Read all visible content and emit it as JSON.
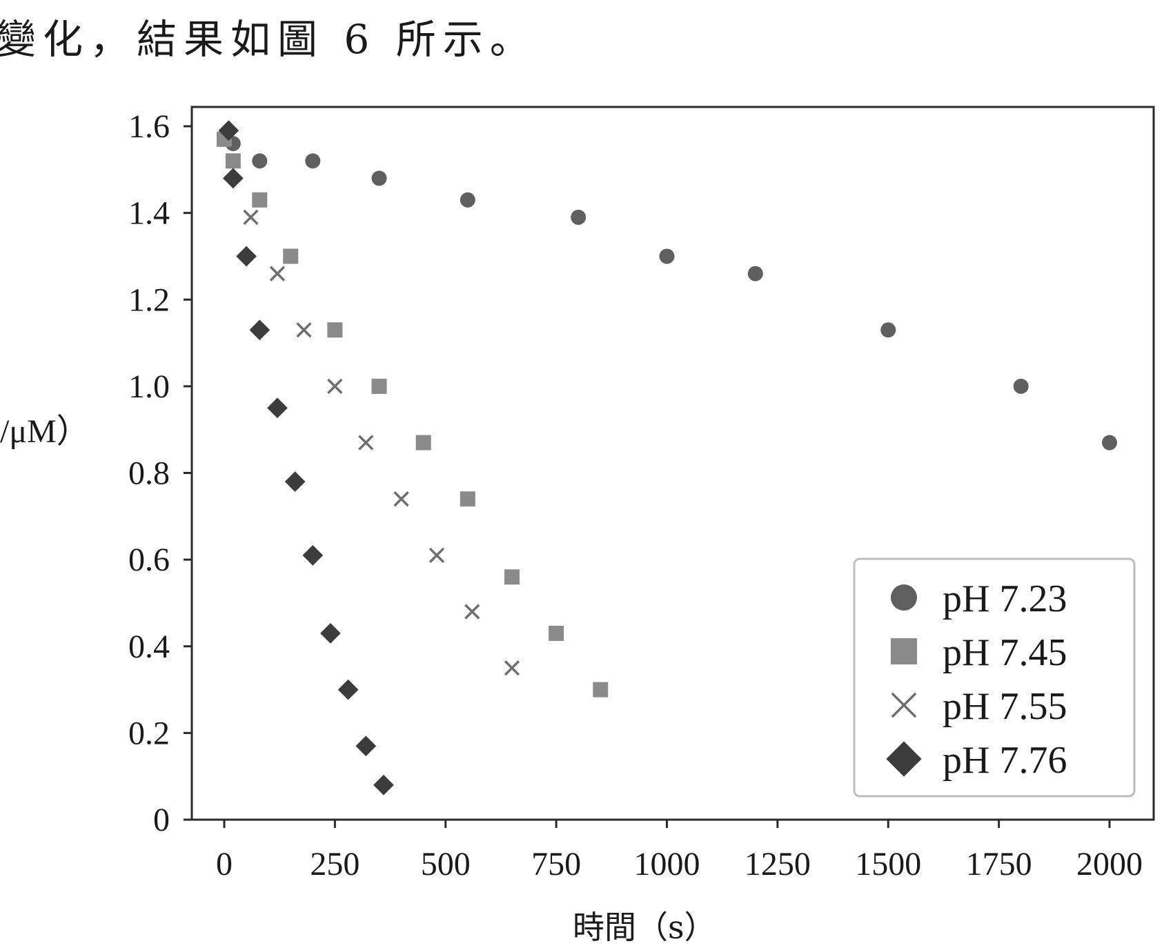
{
  "caption_text": "變化，結果如圖 6 所示。",
  "chart_data": {
    "type": "scatter",
    "xlabel": "時間（s）",
    "ylabel": "/μM）",
    "xlim": [
      0,
      2000
    ],
    "ylim": [
      0,
      1.6
    ],
    "xticks": [
      "0",
      "250",
      "500",
      "750",
      "1000",
      "1250",
      "1500",
      "1750",
      "2000"
    ],
    "yticks": [
      "0",
      "0.2",
      "0.4",
      "0.6",
      "0.8",
      "1.0",
      "1.2",
      "1.4",
      "1.6"
    ],
    "grid": false,
    "legend_position": "bottom-right",
    "series": [
      {
        "name": "pH 7.23",
        "marker": "circle",
        "color": "#5f5f5f",
        "points": [
          [
            20,
            1.56
          ],
          [
            80,
            1.52
          ],
          [
            200,
            1.52
          ],
          [
            350,
            1.48
          ],
          [
            550,
            1.43
          ],
          [
            800,
            1.39
          ],
          [
            1000,
            1.3
          ],
          [
            1200,
            1.26
          ],
          [
            1500,
            1.13
          ],
          [
            1800,
            1.0
          ],
          [
            2000,
            0.87
          ]
        ]
      },
      {
        "name": "pH 7.45",
        "marker": "square",
        "color": "#8a8a8a",
        "points": [
          [
            0,
            1.57
          ],
          [
            20,
            1.52
          ],
          [
            80,
            1.43
          ],
          [
            150,
            1.3
          ],
          [
            250,
            1.13
          ],
          [
            350,
            1.0
          ],
          [
            450,
            0.87
          ],
          [
            550,
            0.74
          ],
          [
            650,
            0.56
          ],
          [
            750,
            0.43
          ],
          [
            850,
            0.3
          ]
        ]
      },
      {
        "name": "pH 7.55",
        "marker": "x",
        "color": "#6e6e6e",
        "points": [
          [
            60,
            1.39
          ],
          [
            120,
            1.26
          ],
          [
            180,
            1.13
          ],
          [
            250,
            1.0
          ],
          [
            320,
            0.87
          ],
          [
            400,
            0.74
          ],
          [
            480,
            0.61
          ],
          [
            560,
            0.48
          ],
          [
            650,
            0.35
          ]
        ]
      },
      {
        "name": "pH 7.76",
        "marker": "diamond",
        "color": "#3c3c3c",
        "points": [
          [
            10,
            1.59
          ],
          [
            20,
            1.48
          ],
          [
            50,
            1.3
          ],
          [
            80,
            1.13
          ],
          [
            120,
            0.95
          ],
          [
            160,
            0.78
          ],
          [
            200,
            0.61
          ],
          [
            240,
            0.43
          ],
          [
            280,
            0.3
          ],
          [
            320,
            0.17
          ],
          [
            360,
            0.08
          ]
        ]
      }
    ]
  }
}
